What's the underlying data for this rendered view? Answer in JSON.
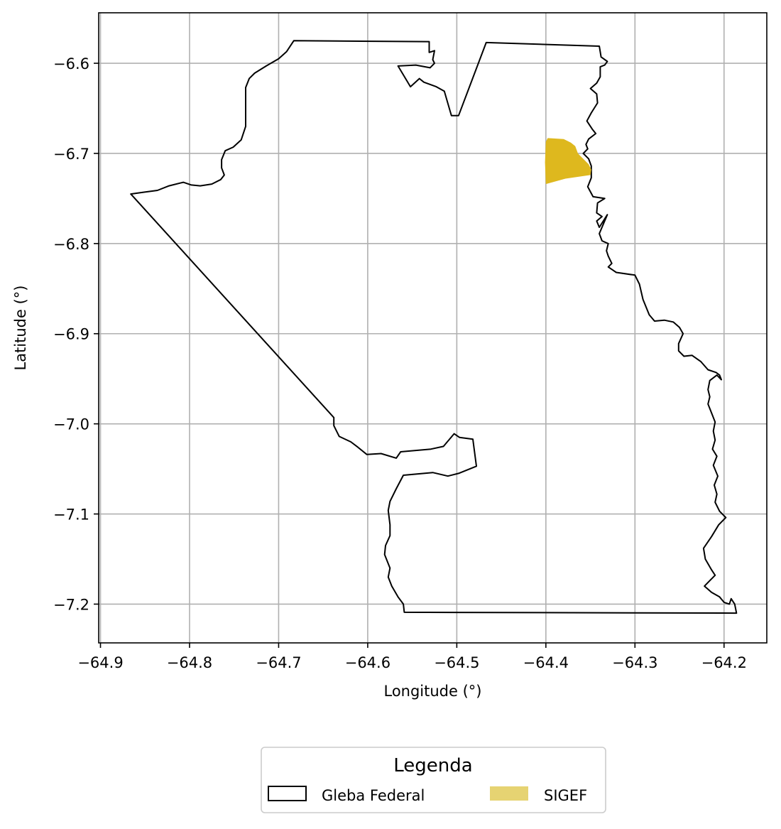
{
  "chart_data": {
    "type": "map",
    "xlabel": "Longitude (°)",
    "ylabel": "Latitude (°)",
    "xlim": [
      -64.902,
      -64.152
    ],
    "ylim": [
      -7.243,
      -6.544
    ],
    "grid": true,
    "x_ticks": [
      -64.9,
      -64.8,
      -64.7,
      -64.6,
      -64.5,
      -64.4,
      -64.3,
      -64.2
    ],
    "x_tick_labels": [
      "−64.9",
      "−64.8",
      "−64.7",
      "−64.6",
      "−64.5",
      "−64.4",
      "−64.3",
      "−64.2"
    ],
    "y_ticks": [
      -6.6,
      -6.7,
      -6.8,
      -6.9,
      -7.0,
      -7.1,
      -7.2
    ],
    "y_tick_labels": [
      "−6.6",
      "−6.7",
      "−6.8",
      "−6.9",
      "−7.0",
      "−7.1",
      "−7.2"
    ],
    "legend": {
      "title": "Legenda",
      "placement": "bottom-center",
      "entries": [
        {
          "label": "Gleba Federal",
          "style": "outline",
          "edge_color": "#000000",
          "face_color": "#ffffff"
        },
        {
          "label": "SIGEF",
          "style": "fill",
          "face_color": "#e6d372"
        }
      ]
    },
    "series": [
      {
        "name": "Gleba Federal",
        "style": "outline",
        "color": "#000000",
        "coords": [
          [
            -64.866,
            -6.745
          ],
          [
            -64.851,
            -6.743
          ],
          [
            -64.836,
            -6.741
          ],
          [
            -64.823,
            -6.736
          ],
          [
            -64.807,
            -6.732
          ],
          [
            -64.798,
            -6.735
          ],
          [
            -64.788,
            -6.736
          ],
          [
            -64.775,
            -6.734
          ],
          [
            -64.765,
            -6.729
          ],
          [
            -64.761,
            -6.724
          ],
          [
            -64.764,
            -6.716
          ],
          [
            -64.764,
            -6.707
          ],
          [
            -64.76,
            -6.697
          ],
          [
            -64.751,
            -6.693
          ],
          [
            -64.742,
            -6.685
          ],
          [
            -64.737,
            -6.67
          ],
          [
            -64.737,
            -6.644
          ],
          [
            -64.737,
            -6.627
          ],
          [
            -64.733,
            -6.617
          ],
          [
            -64.727,
            -6.611
          ],
          [
            -64.714,
            -6.603
          ],
          [
            -64.7,
            -6.595
          ],
          [
            -64.691,
            -6.587
          ],
          [
            -64.683,
            -6.575
          ],
          [
            -64.531,
            -6.576
          ],
          [
            -64.531,
            -6.588
          ],
          [
            -64.525,
            -6.586
          ],
          [
            -64.527,
            -6.596
          ],
          [
            -64.525,
            -6.6
          ],
          [
            -64.53,
            -6.605
          ],
          [
            -64.546,
            -6.602
          ],
          [
            -64.566,
            -6.603
          ],
          [
            -64.552,
            -6.626
          ],
          [
            -64.542,
            -6.617
          ],
          [
            -64.537,
            -6.621
          ],
          [
            -64.523,
            -6.626
          ],
          [
            -64.514,
            -6.631
          ],
          [
            -64.506,
            -6.658
          ],
          [
            -64.498,
            -6.658
          ],
          [
            -64.467,
            -6.577
          ],
          [
            -64.34,
            -6.581
          ],
          [
            -64.338,
            -6.593
          ],
          [
            -64.331,
            -6.598
          ],
          [
            -64.334,
            -6.602
          ],
          [
            -64.339,
            -6.604
          ],
          [
            -64.339,
            -6.615
          ],
          [
            -64.343,
            -6.622
          ],
          [
            -64.35,
            -6.628
          ],
          [
            -64.343,
            -6.634
          ],
          [
            -64.342,
            -6.644
          ],
          [
            -64.349,
            -6.655
          ],
          [
            -64.354,
            -6.664
          ],
          [
            -64.348,
            -6.673
          ],
          [
            -64.344,
            -6.678
          ],
          [
            -64.352,
            -6.684
          ],
          [
            -64.355,
            -6.69
          ],
          [
            -64.353,
            -6.695
          ],
          [
            -64.358,
            -6.7
          ],
          [
            -64.352,
            -6.706
          ],
          [
            -64.349,
            -6.714
          ],
          [
            -64.349,
            -6.727
          ],
          [
            -64.353,
            -6.737
          ],
          [
            -64.347,
            -6.748
          ],
          [
            -64.334,
            -6.75
          ],
          [
            -64.342,
            -6.755
          ],
          [
            -64.343,
            -6.766
          ],
          [
            -64.337,
            -6.77
          ],
          [
            -64.343,
            -6.775
          ],
          [
            -64.34,
            -6.782
          ],
          [
            -64.331,
            -6.768
          ],
          [
            -64.34,
            -6.789
          ],
          [
            -64.337,
            -6.797
          ],
          [
            -64.33,
            -6.8
          ],
          [
            -64.332,
            -6.808
          ],
          [
            -64.33,
            -6.814
          ],
          [
            -64.326,
            -6.822
          ],
          [
            -64.33,
            -6.826
          ],
          [
            -64.321,
            -6.832
          ],
          [
            -64.3,
            -6.835
          ],
          [
            -64.295,
            -6.845
          ],
          [
            -64.291,
            -6.862
          ],
          [
            -64.284,
            -6.879
          ],
          [
            -64.278,
            -6.886
          ],
          [
            -64.267,
            -6.885
          ],
          [
            -64.257,
            -6.887
          ],
          [
            -64.25,
            -6.893
          ],
          [
            -64.246,
            -6.9
          ],
          [
            -64.251,
            -6.911
          ],
          [
            -64.251,
            -6.919
          ],
          [
            -64.245,
            -6.925
          ],
          [
            -64.236,
            -6.924
          ],
          [
            -64.226,
            -6.931
          ],
          [
            -64.218,
            -6.94
          ],
          [
            -64.209,
            -6.943
          ],
          [
            -64.205,
            -6.946
          ],
          [
            -64.203,
            -6.951
          ],
          [
            -64.208,
            -6.946
          ],
          [
            -64.216,
            -6.952
          ],
          [
            -64.218,
            -6.962
          ],
          [
            -64.216,
            -6.97
          ],
          [
            -64.218,
            -6.978
          ],
          [
            -64.214,
            -6.988
          ],
          [
            -64.21,
            -6.998
          ],
          [
            -64.212,
            -7.008
          ],
          [
            -64.21,
            -7.018
          ],
          [
            -64.213,
            -7.028
          ],
          [
            -64.208,
            -7.036
          ],
          [
            -64.212,
            -7.046
          ],
          [
            -64.207,
            -7.058
          ],
          [
            -64.211,
            -7.068
          ],
          [
            -64.208,
            -7.078
          ],
          [
            -64.21,
            -7.087
          ],
          [
            -64.205,
            -7.097
          ],
          [
            -64.198,
            -7.104
          ],
          [
            -64.206,
            -7.112
          ],
          [
            -64.214,
            -7.125
          ],
          [
            -64.223,
            -7.138
          ],
          [
            -64.221,
            -7.15
          ],
          [
            -64.214,
            -7.162
          ],
          [
            -64.21,
            -7.168
          ],
          [
            -64.217,
            -7.175
          ],
          [
            -64.222,
            -7.18
          ],
          [
            -64.214,
            -7.187
          ],
          [
            -64.205,
            -7.192
          ],
          [
            -64.2,
            -7.198
          ],
          [
            -64.194,
            -7.2
          ],
          [
            -64.192,
            -7.194
          ],
          [
            -64.188,
            -7.2
          ],
          [
            -64.186,
            -7.21
          ],
          [
            -64.559,
            -7.209
          ],
          [
            -64.56,
            -7.2
          ],
          [
            -64.566,
            -7.192
          ],
          [
            -64.573,
            -7.18
          ],
          [
            -64.577,
            -7.17
          ],
          [
            -64.575,
            -7.16
          ],
          [
            -64.581,
            -7.145
          ],
          [
            -64.58,
            -7.135
          ],
          [
            -64.575,
            -7.124
          ],
          [
            -64.575,
            -7.112
          ],
          [
            -64.577,
            -7.096
          ],
          [
            -64.575,
            -7.086
          ],
          [
            -64.568,
            -7.072
          ],
          [
            -64.56,
            -7.057
          ],
          [
            -64.527,
            -7.054
          ],
          [
            -64.51,
            -7.058
          ],
          [
            -64.498,
            -7.055
          ],
          [
            -64.478,
            -7.047
          ],
          [
            -64.482,
            -7.017
          ],
          [
            -64.497,
            -7.015
          ],
          [
            -64.503,
            -7.011
          ],
          [
            -64.515,
            -7.025
          ],
          [
            -64.529,
            -7.028
          ],
          [
            -64.563,
            -7.031
          ],
          [
            -64.568,
            -7.038
          ],
          [
            -64.585,
            -7.033
          ],
          [
            -64.601,
            -7.034
          ],
          [
            -64.611,
            -7.026
          ],
          [
            -64.619,
            -7.02
          ],
          [
            -64.632,
            -7.014
          ],
          [
            -64.638,
            -7.002
          ],
          [
            -64.638,
            -6.993
          ],
          [
            -64.866,
            -6.745
          ]
        ]
      },
      {
        "name": "SIGEF",
        "style": "fill",
        "color": "#deb81e",
        "coords": [
          [
            -64.4,
            -6.687
          ],
          [
            -64.398,
            -6.683
          ],
          [
            -64.38,
            -6.684
          ],
          [
            -64.372,
            -6.688
          ],
          [
            -64.367,
            -6.692
          ],
          [
            -64.364,
            -6.7
          ],
          [
            -64.358,
            -6.706
          ],
          [
            -64.352,
            -6.712
          ],
          [
            -64.349,
            -6.718
          ],
          [
            -64.35,
            -6.724
          ],
          [
            -64.378,
            -6.728
          ],
          [
            -64.4,
            -6.734
          ],
          [
            -64.401,
            -6.71
          ]
        ]
      }
    ]
  }
}
